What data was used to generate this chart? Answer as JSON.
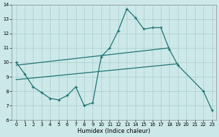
{
  "xlabel": "Humidex (Indice chaleur)",
  "background_color": "#cce8e8",
  "grid_color": "#aacccc",
  "line_color": "#1a7070",
  "xlim": [
    -0.5,
    23.5
  ],
  "ylim": [
    6,
    14
  ],
  "xticks": [
    0,
    1,
    2,
    3,
    4,
    5,
    6,
    7,
    8,
    9,
    10,
    11,
    12,
    13,
    14,
    15,
    16,
    17,
    18,
    19,
    20,
    21,
    22,
    23
  ],
  "yticks": [
    6,
    7,
    8,
    9,
    10,
    11,
    12,
    13,
    14
  ],
  "line1_x": [
    0,
    1,
    2,
    3,
    4,
    5,
    6,
    7,
    8,
    9,
    10,
    11,
    12,
    13,
    14,
    15,
    16,
    17,
    18,
    19,
    22,
    23
  ],
  "line1_y": [
    10.0,
    9.2,
    8.3,
    7.9,
    7.5,
    7.4,
    7.7,
    8.3,
    7.0,
    7.2,
    10.4,
    11.0,
    12.2,
    13.7,
    13.1,
    12.3,
    12.4,
    12.4,
    10.9,
    9.8,
    8.0,
    6.7
  ],
  "line2_x": [
    0,
    18
  ],
  "line2_y": [
    9.8,
    11.0
  ],
  "line3_x": [
    0,
    19
  ],
  "line3_y": [
    8.8,
    9.9
  ]
}
